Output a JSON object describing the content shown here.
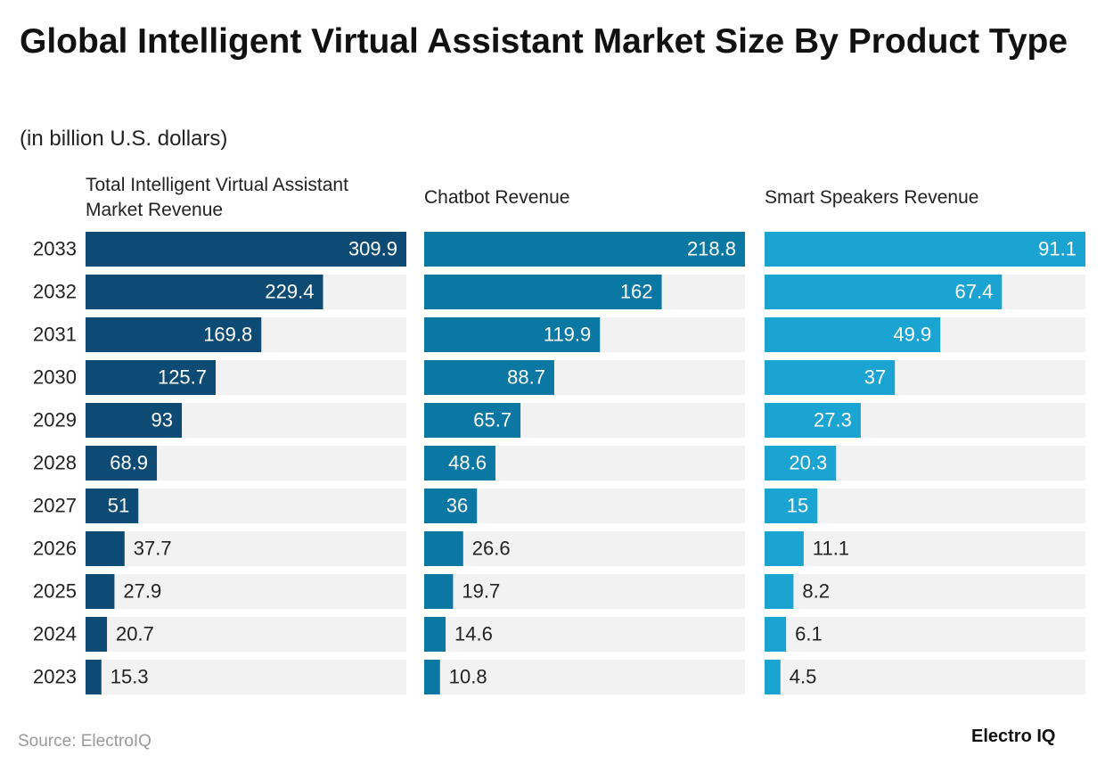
{
  "title": "Global Intelligent Virtual Assistant Market Size By Product Type",
  "subtitle": "(in billion U.S. dollars)",
  "source": "Source: ElectroIQ",
  "logo": "Electro IQ",
  "chart_data": [
    {
      "type": "bar",
      "orientation": "horizontal",
      "title": "Total Intelligent Virtual Assistant Market Revenue",
      "categories": [
        "2033",
        "2032",
        "2031",
        "2030",
        "2029",
        "2028",
        "2027",
        "2026",
        "2025",
        "2024",
        "2023"
      ],
      "values": [
        309.9,
        229.4,
        169.8,
        125.7,
        93,
        68.9,
        51,
        37.7,
        27.9,
        20.7,
        15.3
      ],
      "color": "#0d4a74",
      "xlim": [
        0,
        309.9
      ]
    },
    {
      "type": "bar",
      "orientation": "horizontal",
      "title": "Chatbot Revenue",
      "values": [
        218.8,
        162,
        119.9,
        88.7,
        65.7,
        48.6,
        36,
        26.6,
        19.7,
        14.6,
        10.8
      ],
      "color": "#0b77a3",
      "xlim": [
        0,
        218.8
      ]
    },
    {
      "type": "bar",
      "orientation": "horizontal",
      "title": "Smart Speakers Revenue",
      "values": [
        91.1,
        67.4,
        49.9,
        37,
        27.3,
        20.3,
        15,
        11.1,
        8.2,
        6.1,
        4.5
      ],
      "color": "#1ba3d2",
      "xlim": [
        0,
        91.1
      ]
    }
  ]
}
